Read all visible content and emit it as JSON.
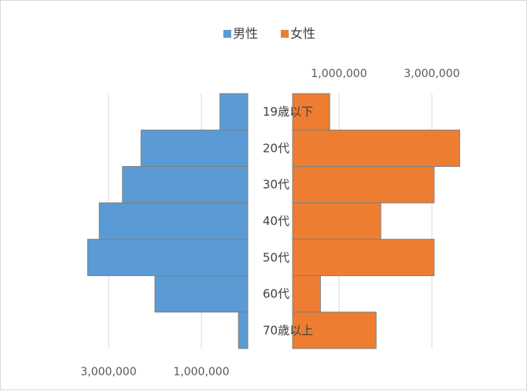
{
  "chart_data": {
    "type": "bar",
    "orientation": "horizontal",
    "layout": "population-pyramid",
    "categories": [
      "19歳以下",
      "20代",
      "30代",
      "40代",
      "50代",
      "60代",
      "70歳以上"
    ],
    "series": [
      {
        "name": "男性",
        "color": "#5b9bd5",
        "values": [
          600000,
          2300000,
          2700000,
          3200000,
          3450000,
          2000000,
          200000
        ]
      },
      {
        "name": "女性",
        "color": "#ed7d31",
        "values": [
          800000,
          3600000,
          3050000,
          1900000,
          3050000,
          600000,
          1800000
        ]
      }
    ],
    "left_axis": {
      "ticks": [
        3000000,
        1000000
      ],
      "tick_labels": [
        "3,000,000",
        "1,000,000"
      ],
      "reversed": true,
      "position": "bottom",
      "range": [
        0,
        4000000
      ]
    },
    "right_axis": {
      "ticks": [
        1000000,
        3000000
      ],
      "tick_labels": [
        "1,000,000",
        "3,000,000"
      ],
      "position": "top",
      "range": [
        0,
        4000000
      ]
    },
    "grid": true,
    "legend": {
      "position": "top",
      "items": [
        "男性",
        "女性"
      ]
    },
    "gridline_color": "#d9d9d9",
    "bar_border_color": "#7f7f7f"
  }
}
